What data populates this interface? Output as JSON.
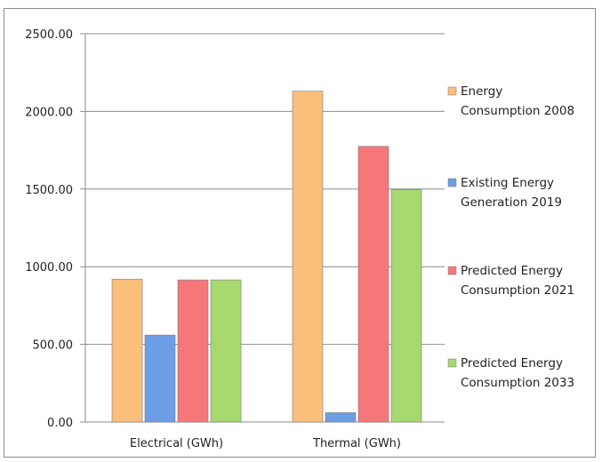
{
  "chart_data": {
    "type": "bar",
    "categories": [
      "Electrical (GWh)",
      "Thermal (GWh)"
    ],
    "series": [
      {
        "name": "Energy Consumption 2008",
        "legend_lines": [
          "Energy",
          "Consumption 2008"
        ],
        "color": "#fbbf7c",
        "values": [
          920,
          2130
        ]
      },
      {
        "name": "Existing Energy Generation 2019",
        "legend_lines": [
          "Existing Energy",
          "Generation  2019"
        ],
        "color": "#6c9ee6",
        "values": [
          560,
          60
        ]
      },
      {
        "name": "Predicted Energy Consumption 2021",
        "legend_lines": [
          "Predicted Energy",
          "Consumption 2021"
        ],
        "color": "#f6777a",
        "values": [
          915,
          1775
        ]
      },
      {
        "name": "Predicted Energy Consumption 2033",
        "legend_lines": [
          "Predicted Energy",
          "Consumption 2033"
        ],
        "color": "#a6d86e",
        "values": [
          915,
          1495
        ]
      }
    ],
    "yticks": [
      "0.00",
      "500.00",
      "1000.00",
      "1500.00",
      "2000.00",
      "2500.00"
    ],
    "ylim": [
      0,
      2500
    ],
    "grid": true,
    "legend_position": "right",
    "title": "",
    "xlabel": "",
    "ylabel": ""
  }
}
